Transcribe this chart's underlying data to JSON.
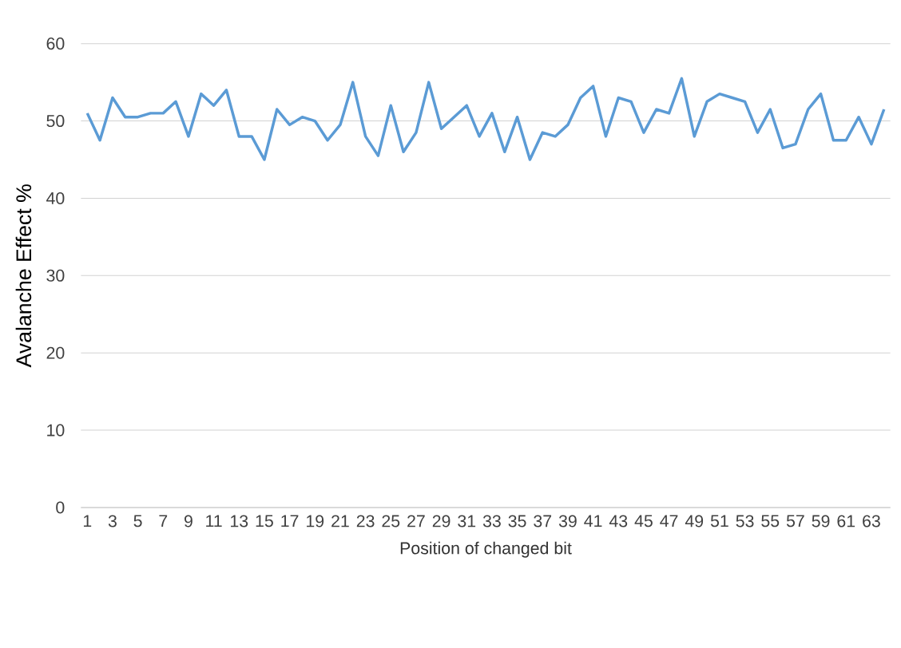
{
  "chart_data": {
    "type": "line",
    "xlabel": "Position of  changed bit",
    "ylabel": "Avalanche Effect %",
    "categories": [
      "1",
      null,
      "3",
      null,
      "5",
      null,
      "7",
      null,
      "9",
      null,
      "11",
      null,
      "13",
      null,
      "15",
      null,
      "17",
      null,
      "19",
      null,
      "21",
      null,
      "23",
      null,
      "25",
      null,
      "27",
      null,
      "29",
      null,
      "31",
      null,
      "33",
      null,
      "35",
      null,
      "37",
      null,
      "39",
      null,
      "41",
      null,
      "43",
      null,
      "45",
      null,
      "47",
      null,
      "49",
      null,
      "51",
      null,
      "53",
      null,
      "55",
      null,
      "57",
      null,
      "59",
      null,
      "61",
      null,
      "63",
      null
    ],
    "series": [
      {
        "color": "#5b9bd5",
        "values": [
          51,
          47.5,
          53,
          50.5,
          50.5,
          51,
          51,
          52.5,
          48,
          53.5,
          52,
          54,
          48,
          48,
          45,
          51.5,
          49.5,
          50.5,
          50,
          47.5,
          49.5,
          55,
          48,
          45.5,
          52,
          46,
          48.5,
          55,
          49,
          50.5,
          52,
          48,
          51,
          46,
          50.5,
          45,
          48.5,
          48,
          49.5,
          53,
          54.5,
          48,
          53,
          52.5,
          48.5,
          51.5,
          51,
          55.5,
          48,
          52.5,
          53.5,
          53,
          52.5,
          48.5,
          51.5,
          46.5,
          47,
          51.5,
          53.5,
          47.5,
          47.5,
          50.5,
          47,
          51.5
        ]
      }
    ],
    "ylim": [
      0,
      60
    ],
    "yticks": [
      0,
      10,
      20,
      30,
      40,
      50,
      60
    ],
    "grid": "y",
    "marker": "none",
    "line_style": "solid"
  }
}
